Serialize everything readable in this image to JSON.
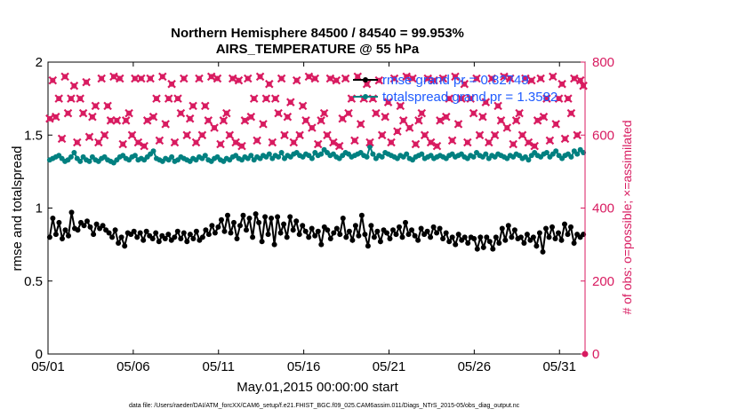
{
  "chart_data": {
    "type": "line",
    "title": "Northern Hemisphere 84500 / 84540 = 99.953%",
    "subtitle": "AIRS_TEMPERATURE @ 55 hPa",
    "xlabel": "May.01,2015 00:00:00 start",
    "ylabel": "rmse and totalspread",
    "ylabel_right": "# of obs: o=possible; ×=assimilated",
    "x_ticks": [
      "05/01",
      "05/06",
      "05/11",
      "05/16",
      "05/21",
      "05/26",
      "05/31"
    ],
    "x_tick_days": [
      0,
      5,
      10,
      15,
      20,
      25,
      30
    ],
    "xlim_days": [
      0,
      31.5
    ],
    "ylim": [
      0,
      2
    ],
    "y_ticks": [
      "0",
      "0.5",
      "1",
      "1.5",
      "2"
    ],
    "ylim_right": [
      0,
      800
    ],
    "y_ticks_right": [
      "0",
      "200",
      "400",
      "600",
      "800"
    ],
    "legend": [
      {
        "label": "rmse grand pr = 0.82749",
        "color": "#000000"
      },
      {
        "label": "totalspread grand pr = 1.3582",
        "color": "#008080"
      }
    ],
    "legend_position": "top-right",
    "grid": false,
    "footnote": "data file: /Users/raeder/DAI/ATM_forcXX/CAM6_setup/f.e21.FHIST_BGC.f09_025.CAM6assim.011/Diags_NTrS_2015-05/obs_diag_output.nc",
    "series": [
      {
        "name": "rmse",
        "color": "#000000",
        "axis": "left",
        "values": [
          0.8,
          0.93,
          0.82,
          0.9,
          0.79,
          0.85,
          0.81,
          0.97,
          0.86,
          0.85,
          0.9,
          0.88,
          0.91,
          0.87,
          0.82,
          0.89,
          0.86,
          0.88,
          0.85,
          0.83,
          0.8,
          0.85,
          0.76,
          0.8,
          0.74,
          0.83,
          0.82,
          0.84,
          0.8,
          0.83,
          0.78,
          0.84,
          0.81,
          0.79,
          0.83,
          0.77,
          0.81,
          0.79,
          0.82,
          0.78,
          0.8,
          0.84,
          0.79,
          0.83,
          0.77,
          0.82,
          0.79,
          0.84,
          0.78,
          0.8,
          0.85,
          0.82,
          0.88,
          0.83,
          0.87,
          0.92,
          0.84,
          0.95,
          0.83,
          0.9,
          0.79,
          0.88,
          0.95,
          0.85,
          0.93,
          0.8,
          0.96,
          0.9,
          0.77,
          0.94,
          0.82,
          0.93,
          0.75,
          0.94,
          0.83,
          0.89,
          0.8,
          0.94,
          0.85,
          0.91,
          0.82,
          0.88,
          0.84,
          0.8,
          0.86,
          0.81,
          0.84,
          0.75,
          0.87,
          0.85,
          0.79,
          0.83,
          0.86,
          0.82,
          0.93,
          0.8,
          0.84,
          0.78,
          0.88,
          0.81,
          0.95,
          0.82,
          0.74,
          0.88,
          0.8,
          0.84,
          0.77,
          0.85,
          0.83,
          0.79,
          0.85,
          0.82,
          0.87,
          0.8,
          0.9,
          0.82,
          0.85,
          0.81,
          0.78,
          0.86,
          0.82,
          0.84,
          0.8,
          0.87,
          0.83,
          0.86,
          0.79,
          0.83,
          0.77,
          0.8,
          0.75,
          0.82,
          0.78,
          0.8,
          0.76,
          0.8,
          0.79,
          0.72,
          0.8,
          0.73,
          0.8,
          0.77,
          0.72,
          0.8,
          0.76,
          0.86,
          0.78,
          0.88,
          0.8,
          0.85,
          0.79,
          0.8,
          0.76,
          0.82,
          0.78,
          0.8,
          0.74,
          0.83,
          0.7,
          0.86,
          0.8,
          0.87,
          0.79,
          0.83,
          0.78,
          0.89,
          0.82,
          0.87,
          0.76,
          0.82,
          0.8,
          0.82
        ]
      },
      {
        "name": "totalspread",
        "color": "#008080",
        "axis": "left",
        "values": [
          1.33,
          1.34,
          1.35,
          1.36,
          1.34,
          1.32,
          1.33,
          1.35,
          1.38,
          1.34,
          1.32,
          1.35,
          1.33,
          1.32,
          1.35,
          1.33,
          1.32,
          1.34,
          1.35,
          1.33,
          1.32,
          1.31,
          1.33,
          1.35,
          1.36,
          1.34,
          1.33,
          1.35,
          1.36,
          1.33,
          1.34,
          1.33,
          1.35,
          1.37,
          1.39,
          1.34,
          1.33,
          1.32,
          1.34,
          1.33,
          1.35,
          1.32,
          1.33,
          1.35,
          1.34,
          1.33,
          1.32,
          1.34,
          1.33,
          1.35,
          1.34,
          1.36,
          1.33,
          1.32,
          1.34,
          1.35,
          1.33,
          1.32,
          1.34,
          1.33,
          1.35,
          1.36,
          1.34,
          1.33,
          1.35,
          1.34,
          1.36,
          1.33,
          1.35,
          1.34,
          1.36,
          1.35,
          1.37,
          1.34,
          1.36,
          1.35,
          1.38,
          1.34,
          1.36,
          1.35,
          1.37,
          1.38,
          1.36,
          1.35,
          1.37,
          1.36,
          1.34,
          1.38,
          1.36,
          1.37,
          1.4,
          1.38,
          1.36,
          1.37,
          1.35,
          1.34,
          1.36,
          1.38,
          1.37,
          1.35,
          1.36,
          1.37,
          1.38,
          1.36,
          1.35,
          1.42,
          1.37,
          1.34,
          1.36,
          1.35,
          1.38,
          1.37,
          1.36,
          1.35,
          1.34,
          1.36,
          1.35,
          1.37,
          1.34,
          1.33,
          1.35,
          1.36,
          1.37,
          1.34,
          1.35,
          1.36,
          1.34,
          1.35,
          1.36,
          1.35,
          1.34,
          1.36,
          1.37,
          1.35,
          1.36,
          1.37,
          1.35,
          1.34,
          1.36,
          1.35,
          1.38,
          1.36,
          1.35,
          1.37,
          1.34,
          1.36,
          1.35,
          1.37,
          1.36,
          1.35,
          1.34,
          1.36,
          1.35,
          1.37,
          1.36,
          1.34,
          1.35,
          1.33,
          1.36,
          1.38,
          1.36,
          1.35,
          1.37,
          1.38,
          1.35,
          1.37,
          1.39,
          1.36,
          1.34,
          1.36,
          1.37,
          1.35,
          1.39,
          1.37,
          1.4,
          1.38
        ]
      },
      {
        "name": "possible",
        "color": "#d81b60",
        "axis": "right",
        "values": [
          645,
          750,
          650,
          700,
          590,
          760,
          660,
          700,
          735,
          580,
          700,
          660,
          745,
          595,
          650,
          680,
          580,
          755,
          600,
          680,
          640,
          760,
          640,
          755,
          575,
          640,
          660,
          600,
          755,
          580,
          755,
          570,
          640,
          755,
          650,
          700,
          585,
          760,
          630,
          700,
          740,
          580,
          700,
          660,
          755,
          600,
          645,
          680,
          580,
          755,
          600,
          680,
          640,
          760,
          620,
          755,
          575,
          640,
          660,
          600,
          755,
          580,
          750,
          570,
          640,
          755,
          650,
          700,
          585,
          760,
          630,
          700,
          740,
          580,
          700,
          660,
          755,
          600,
          650,
          690,
          580,
          750,
          600,
          680,
          640,
          760,
          620,
          755,
          575,
          640,
          660,
          600,
          755,
          580,
          750,
          570,
          645,
          755,
          660,
          700,
          585,
          760,
          630,
          700,
          740,
          580,
          700,
          660,
          750,
          600,
          650,
          690,
          580,
          755,
          610,
          680,
          640,
          760,
          620,
          755,
          575,
          640,
          660,
          600,
          755,
          580,
          750,
          570,
          640,
          755,
          650,
          700,
          585,
          760,
          630,
          700,
          740,
          580,
          700,
          660,
          755,
          600,
          650,
          690,
          580,
          755,
          600,
          680,
          640,
          760,
          620,
          755,
          575,
          640,
          660,
          600,
          755,
          580,
          750,
          570,
          640,
          755,
          650,
          700,
          585,
          760,
          630,
          700,
          740,
          590,
          700,
          660,
          755,
          600,
          750,
          735
        ]
      }
    ]
  }
}
